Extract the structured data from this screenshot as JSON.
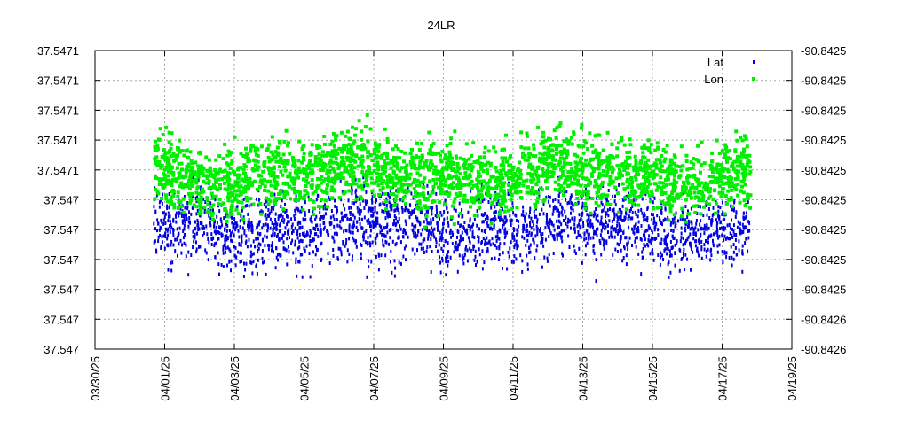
{
  "chart_data": {
    "type": "scatter",
    "title": "24LR",
    "x_ticks": [
      "03/30/25",
      "04/01/25",
      "04/03/25",
      "04/05/25",
      "04/07/25",
      "04/09/25",
      "04/11/25",
      "04/13/25",
      "04/15/25",
      "04/17/25",
      "04/19/25"
    ],
    "y_left_ticks": [
      "37.547",
      "37.547",
      "37.547",
      "37.547",
      "37.547",
      "37.547",
      "37.5471",
      "37.5471",
      "37.5471",
      "37.5471",
      "37.5471"
    ],
    "y_right_ticks": [
      "-90.8426",
      "-90.8426",
      "-90.8425",
      "-90.8425",
      "-90.8425",
      "-90.8425",
      "-90.8425",
      "-90.8425",
      "-90.8425",
      "-90.8425",
      "-90.8425"
    ],
    "grid": true,
    "legend_position": "top-right",
    "series": [
      {
        "name": "Lat",
        "axis": "left",
        "color": "#0000e0",
        "x_range": [
          "03/31/25",
          "04/18/25"
        ],
        "typical_range": [
          "37.547",
          "37.5471"
        ]
      },
      {
        "name": "Lon",
        "axis": "right",
        "color": "#00ee00",
        "x_range": [
          "03/31/25",
          "04/18/25"
        ],
        "typical_range": [
          "-90.8425",
          "-90.8425"
        ]
      }
    ]
  }
}
